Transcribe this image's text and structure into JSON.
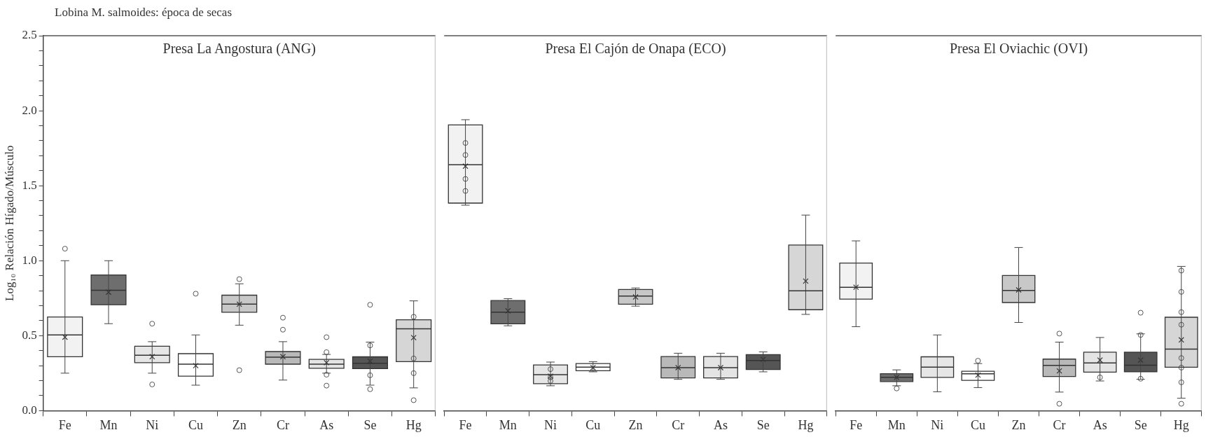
{
  "chart_data": [
    {
      "type": "box",
      "title": "Presa La Angostura (ANG)",
      "annotations": [
        "Lobina M. salmoides: época de secas"
      ],
      "ylabel": "Log₁₀ Relación Hígado/Músculo",
      "categories": [
        "Fe",
        "Mn",
        "Ni",
        "Cu",
        "Zn",
        "Cr",
        "As",
        "Se",
        "Hg"
      ],
      "colors": [
        "#f2f2f2",
        "#6e6e6e",
        "#e6e6e6",
        "#ffffff",
        "#c8c8c8",
        "#b9b9b9",
        "#e4e4e4",
        "#555555",
        "#d6d6d6"
      ],
      "boxes": [
        {
          "low": 0.25,
          "q1": 0.36,
          "median": 0.505,
          "q3": 0.625,
          "high": 1.0,
          "mean": 0.49,
          "outliers": [
            1.08
          ]
        },
        {
          "low": 0.58,
          "q1": 0.706,
          "median": 0.803,
          "q3": 0.905,
          "high": 1.0,
          "mean": 0.79
        },
        {
          "low": 0.25,
          "q1": 0.32,
          "median": 0.37,
          "q3": 0.43,
          "high": 0.46,
          "mean": 0.36,
          "outliers": [
            0.58,
            0.175
          ]
        },
        {
          "low": 0.17,
          "q1": 0.23,
          "median": 0.31,
          "q3": 0.38,
          "high": 0.505,
          "mean": 0.3,
          "outliers": [
            0.78
          ]
        },
        {
          "low": 0.57,
          "q1": 0.656,
          "median": 0.71,
          "q3": 0.77,
          "high": 0.846,
          "mean": 0.71,
          "outliers": [
            0.877,
            0.27
          ]
        },
        {
          "low": 0.204,
          "q1": 0.31,
          "median": 0.357,
          "q3": 0.394,
          "high": 0.46,
          "mean": 0.36,
          "outliers": [
            0.62,
            0.54
          ]
        },
        {
          "low": 0.25,
          "q1": 0.283,
          "median": 0.31,
          "q3": 0.342,
          "high": 0.375,
          "mean": 0.32,
          "outliers": [
            0.49,
            0.39,
            0.24,
            0.167
          ]
        },
        {
          "low": 0.17,
          "q1": 0.28,
          "median": 0.316,
          "q3": 0.359,
          "high": 0.457,
          "mean": 0.33,
          "outliers": [
            0.706,
            0.435,
            0.236,
            0.143
          ]
        },
        {
          "low": 0.152,
          "q1": 0.327,
          "median": 0.546,
          "q3": 0.606,
          "high": 0.732,
          "mean": 0.487,
          "outliers": [
            0.626,
            0.348,
            0.25,
            0.07
          ]
        }
      ],
      "ylim": [
        0,
        2.5
      ],
      "yticks": [
        {
          "value": 0,
          "label": "0.0"
        },
        {
          "value": 0.1,
          "label": null
        },
        {
          "value": 0.2,
          "label": null
        },
        {
          "value": 0.3,
          "label": null
        },
        {
          "value": 0.4,
          "label": null
        },
        0.5,
        {
          "value": 0.6,
          "label": null
        },
        {
          "value": 0.7,
          "label": null
        },
        {
          "value": 0.8,
          "label": null
        },
        {
          "value": 0.9,
          "label": null
        },
        {
          "value": 1,
          "label": "1.0"
        },
        {
          "value": 1.1,
          "label": null
        },
        {
          "value": 1.2,
          "label": null
        },
        {
          "value": 1.3,
          "label": null
        },
        {
          "value": 1.4,
          "label": null
        },
        1.5,
        {
          "value": 1.6,
          "label": null
        },
        {
          "value": 1.7,
          "label": null
        },
        {
          "value": 1.8,
          "label": null
        },
        {
          "value": 1.9,
          "label": null
        },
        {
          "value": 2,
          "label": "2.0"
        },
        {
          "value": 2.1,
          "label": null
        },
        {
          "value": 2.2,
          "label": null
        },
        {
          "value": 2.3,
          "label": null
        },
        {
          "value": 2.4,
          "label": null
        },
        2.5
      ]
    },
    {
      "type": "box",
      "title": "Presa El Cajón de Onapa (ECO)",
      "categories": [
        "Fe",
        "Mn",
        "Ni",
        "Cu",
        "Zn",
        "Cr",
        "As",
        "Se",
        "Hg"
      ],
      "colors": [
        "#f2f2f2",
        "#6e6e6e",
        "#e6e6e6",
        "#ffffff",
        "#c8c8c8",
        "#b9b9b9",
        "#e4e4e4",
        "#555555",
        "#d6d6d6"
      ],
      "boxes": [
        {
          "low": 1.37,
          "q1": 1.384,
          "median": 1.64,
          "q3": 1.905,
          "high": 1.94,
          "mean": 1.63,
          "outliers": [
            1.785,
            1.705,
            1.545,
            1.465
          ]
        },
        {
          "low": 0.566,
          "q1": 0.579,
          "median": 0.657,
          "q3": 0.734,
          "high": 0.747,
          "mean": 0.666
        },
        {
          "low": 0.166,
          "q1": 0.18,
          "median": 0.24,
          "q3": 0.305,
          "high": 0.324,
          "mean": 0.23,
          "outliers": [
            0.277,
            0.222,
            0.198
          ]
        },
        {
          "low": 0.259,
          "q1": 0.266,
          "median": 0.29,
          "q3": 0.314,
          "high": 0.327,
          "mean": 0.287
        },
        {
          "low": 0.697,
          "q1": 0.71,
          "median": 0.764,
          "q3": 0.808,
          "high": 0.818,
          "mean": 0.758
        },
        {
          "low": 0.209,
          "q1": 0.218,
          "median": 0.287,
          "q3": 0.361,
          "high": 0.383,
          "mean": 0.287
        },
        {
          "low": 0.209,
          "q1": 0.218,
          "median": 0.287,
          "q3": 0.361,
          "high": 0.383,
          "mean": 0.287
        },
        {
          "low": 0.259,
          "q1": 0.274,
          "median": 0.335,
          "q3": 0.374,
          "high": 0.392,
          "mean": 0.342
        },
        {
          "low": 0.642,
          "q1": 0.673,
          "median": 0.799,
          "q3": 1.104,
          "high": 1.304,
          "mean": 0.864
        }
      ],
      "ylim": [
        0,
        2.5
      ],
      "tick_labels": "x"
    },
    {
      "type": "box",
      "title": "Presa El Oviachic (OVI)",
      "categories": [
        "Fe",
        "Mn",
        "Ni",
        "Cu",
        "Zn",
        "Cr",
        "As",
        "Se",
        "Hg"
      ],
      "colors": [
        "#f2f2f2",
        "#6e6e6e",
        "#e6e6e6",
        "#ffffff",
        "#c8c8c8",
        "#b9b9b9",
        "#e4e4e4",
        "#555555",
        "#d6d6d6"
      ],
      "boxes": [
        {
          "low": 0.56,
          "q1": 0.744,
          "median": 0.823,
          "q3": 0.984,
          "high": 1.132,
          "mean": 0.823
        },
        {
          "low": 0.166,
          "q1": 0.194,
          "median": 0.222,
          "q3": 0.246,
          "high": 0.272,
          "mean": 0.222,
          "outliers": [
            0.148
          ]
        },
        {
          "low": 0.126,
          "q1": 0.222,
          "median": 0.29,
          "q3": 0.359,
          "high": 0.505
        },
        {
          "low": 0.154,
          "q1": 0.202,
          "median": 0.246,
          "q3": 0.263,
          "high": 0.314,
          "mean": 0.237,
          "outliers": [
            0.333
          ]
        },
        {
          "low": 0.588,
          "q1": 0.721,
          "median": 0.801,
          "q3": 0.901,
          "high": 1.088,
          "mean": 0.805
        },
        {
          "low": 0.124,
          "q1": 0.228,
          "median": 0.302,
          "q3": 0.344,
          "high": 0.457,
          "mean": 0.265,
          "outliers": [
            0.514,
            0.046
          ]
        },
        {
          "low": 0.198,
          "q1": 0.257,
          "median": 0.318,
          "q3": 0.39,
          "high": 0.488,
          "mean": 0.337,
          "outliers": [
            0.222
          ]
        },
        {
          "low": 0.209,
          "q1": 0.259,
          "median": 0.303,
          "q3": 0.39,
          "high": 0.512,
          "mean": 0.337,
          "outliers": [
            0.653,
            0.505,
            0.213
          ]
        },
        {
          "low": 0.083,
          "q1": 0.29,
          "median": 0.411,
          "q3": 0.623,
          "high": 0.962,
          "mean": 0.472,
          "outliers": [
            0.934,
            0.792,
            0.657,
            0.573,
            0.351,
            0.287,
            0.189,
            0.046
          ]
        }
      ],
      "ylim": [
        0,
        2.5
      ],
      "tick_labels": "x"
    }
  ]
}
